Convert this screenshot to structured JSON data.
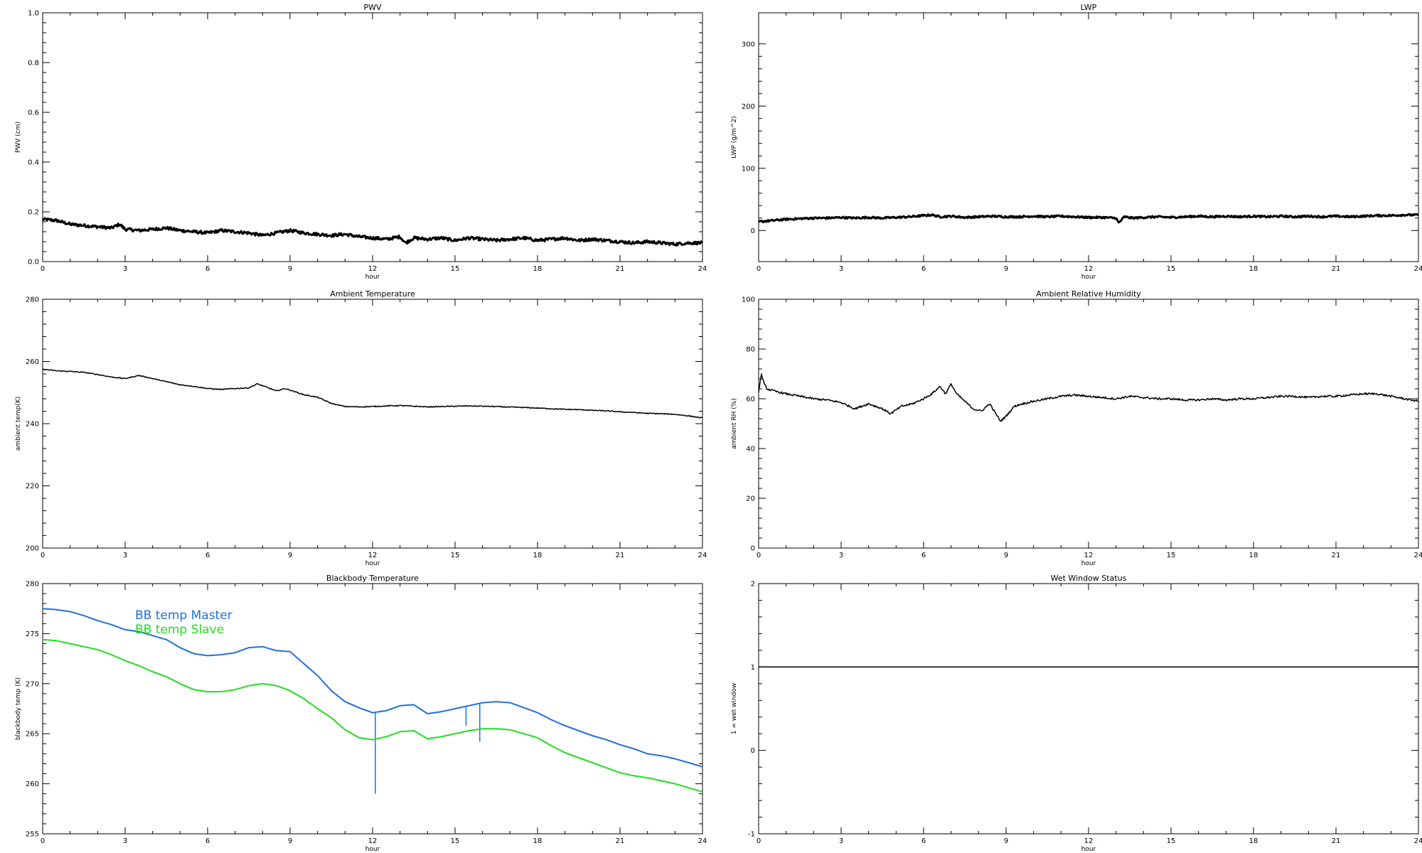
{
  "chart_data": [
    {
      "type": "line",
      "title": "PWV",
      "xlabel": "hour",
      "ylabel": "PWV (cm)",
      "xlim": [
        0,
        24
      ],
      "ylim": [
        0.0,
        1.0
      ],
      "xticks": [
        "0",
        "3",
        "6",
        "9",
        "12",
        "15",
        "18",
        "21",
        "24"
      ],
      "yticks": [
        "0.0",
        "0.2",
        "0.4",
        "0.6",
        "0.8",
        "1.0"
      ],
      "ytick_values": [
        0.0,
        0.2,
        0.4,
        0.6,
        0.8,
        1.0
      ],
      "series": [
        {
          "color": "#000000",
          "noise": 0.006,
          "width": 3,
          "x": [
            0,
            0.5,
            1,
            1.5,
            2,
            2.5,
            2.8,
            3,
            3.5,
            4,
            4.5,
            5,
            5.5,
            6,
            6.5,
            7,
            7.5,
            8,
            8.5,
            9,
            9.5,
            10,
            10.5,
            11,
            11.5,
            12,
            12.5,
            13,
            13.2,
            13.5,
            14,
            14.5,
            15,
            15.5,
            16,
            16.5,
            17,
            17.5,
            18,
            18.5,
            19,
            19.5,
            20,
            20.5,
            21,
            21.5,
            22,
            22.5,
            23,
            23.5,
            24
          ],
          "y": [
            0.17,
            0.165,
            0.15,
            0.145,
            0.14,
            0.135,
            0.15,
            0.13,
            0.125,
            0.13,
            0.135,
            0.125,
            0.12,
            0.115,
            0.125,
            0.12,
            0.115,
            0.105,
            0.115,
            0.125,
            0.115,
            0.11,
            0.105,
            0.11,
            0.1,
            0.095,
            0.09,
            0.1,
            0.075,
            0.095,
            0.09,
            0.095,
            0.085,
            0.095,
            0.09,
            0.085,
            0.09,
            0.095,
            0.085,
            0.09,
            0.095,
            0.085,
            0.09,
            0.085,
            0.08,
            0.075,
            0.08,
            0.075,
            0.07,
            0.075,
            0.075
          ]
        }
      ]
    },
    {
      "type": "line",
      "title": "LWP",
      "xlabel": "hour",
      "ylabel": "LWP (g/m^2)",
      "xlim": [
        0,
        24
      ],
      "ylim": [
        -50,
        350
      ],
      "xticks": [
        "0",
        "3",
        "6",
        "9",
        "12",
        "15",
        "18",
        "21",
        "24"
      ],
      "yticks": [
        "0",
        "100",
        "200",
        "300"
      ],
      "ytick_values": [
        0,
        100,
        200,
        300
      ],
      "series": [
        {
          "color": "#000000",
          "noise": 1.5,
          "width": 3,
          "x": [
            0,
            0.5,
            1,
            1.5,
            2,
            2.5,
            3,
            3.5,
            4,
            4.5,
            5,
            5.5,
            6,
            6.3,
            6.6,
            7,
            7.5,
            8,
            8.5,
            9,
            9.5,
            10,
            10.5,
            11,
            11.5,
            12,
            12.5,
            13,
            13.1,
            13.3,
            13.6,
            14,
            14.5,
            15,
            15.5,
            16,
            16.5,
            17,
            17.5,
            18,
            18.5,
            19,
            19.5,
            20,
            20.5,
            21,
            21.5,
            22,
            22.5,
            23,
            23.5,
            24
          ],
          "y": [
            14,
            16,
            18,
            19,
            20,
            20,
            21,
            20,
            21,
            20,
            21,
            22,
            24,
            25,
            22,
            23,
            21,
            22,
            23,
            22,
            22,
            23,
            22,
            23,
            22,
            21,
            21,
            20,
            12,
            22,
            20,
            21,
            22,
            21,
            22,
            23,
            22,
            23,
            22,
            23,
            22,
            23,
            22,
            23,
            22,
            23,
            22,
            23,
            24,
            24,
            25,
            25
          ]
        }
      ]
    },
    {
      "type": "line",
      "title": "Ambient Temperature",
      "xlabel": "hour",
      "ylabel": "ambient temp(K)",
      "xlim": [
        0,
        24
      ],
      "ylim": [
        200,
        280
      ],
      "xticks": [
        "0",
        "3",
        "6",
        "9",
        "12",
        "15",
        "18",
        "21",
        "24"
      ],
      "yticks": [
        "200",
        "220",
        "240",
        "260",
        "280"
      ],
      "ytick_values": [
        200,
        220,
        240,
        260,
        280
      ],
      "series": [
        {
          "color": "#000000",
          "noise": 0.15,
          "width": 1.5,
          "x": [
            0,
            0.5,
            1,
            1.5,
            2,
            2.5,
            3,
            3.5,
            4,
            4.5,
            5,
            5.5,
            6,
            6.5,
            7,
            7.5,
            7.8,
            8,
            8.5,
            8.8,
            9,
            9.5,
            10,
            10.5,
            11,
            11.5,
            12,
            12.5,
            13,
            13.5,
            14,
            14.5,
            15,
            15.5,
            16,
            16.5,
            17,
            17.5,
            18,
            18.5,
            19,
            19.5,
            20,
            20.5,
            21,
            21.5,
            22,
            22.5,
            23,
            23.5,
            24
          ],
          "y": [
            257.5,
            257,
            256.8,
            256.5,
            255.8,
            255,
            254.5,
            255.5,
            254.5,
            253.5,
            252.5,
            252,
            251.3,
            251,
            251.3,
            251.5,
            252.8,
            252.2,
            250.5,
            251.3,
            250.8,
            249.3,
            248.5,
            246.5,
            245.5,
            245.4,
            245.5,
            245.7,
            245.8,
            245.6,
            245.4,
            245.5,
            245.6,
            245.7,
            245.6,
            245.5,
            245.3,
            245.2,
            245.0,
            244.8,
            244.6,
            244.5,
            244.3,
            244.1,
            243.8,
            243.6,
            243.3,
            243.2,
            243.0,
            242.5,
            241.8
          ]
        }
      ]
    },
    {
      "type": "line",
      "title": "Ambient Relative Humidity",
      "xlabel": "hour",
      "ylabel": "ambient RH (%)",
      "xlim": [
        0,
        24
      ],
      "ylim": [
        0,
        100
      ],
      "xticks": [
        "0",
        "3",
        "6",
        "9",
        "12",
        "15",
        "18",
        "21",
        "24"
      ],
      "yticks": [
        "0",
        "20",
        "40",
        "60",
        "80",
        "100"
      ],
      "ytick_values": [
        0,
        20,
        40,
        60,
        80,
        100
      ],
      "series": [
        {
          "color": "#000000",
          "noise": 0.4,
          "width": 1.5,
          "x": [
            0,
            0.1,
            0.2,
            0.3,
            0.6,
            1,
            1.5,
            2,
            2.5,
            3,
            3.5,
            4,
            4.5,
            4.8,
            5.2,
            5.6,
            6,
            6.3,
            6.6,
            6.8,
            7,
            7.2,
            7.5,
            7.8,
            8.1,
            8.4,
            8.8,
            9,
            9.3,
            9.6,
            10,
            10.5,
            11,
            11.5,
            12,
            12.5,
            13,
            13.5,
            14,
            14.5,
            15,
            15.5,
            16,
            16.5,
            17,
            17.5,
            18,
            18.5,
            19,
            19.5,
            20,
            20.5,
            21,
            21.5,
            22,
            22.5,
            23,
            23.5,
            24
          ],
          "y": [
            63,
            70,
            66,
            64,
            63,
            62,
            61,
            60,
            59.5,
            58.5,
            56,
            58,
            56,
            54,
            57,
            58,
            60,
            62,
            65,
            62,
            66,
            62,
            59,
            56,
            55,
            58,
            51,
            53,
            57,
            58,
            59,
            60,
            61,
            61.5,
            61,
            60.5,
            60,
            61,
            60.5,
            60,
            60,
            59.5,
            59.5,
            60,
            59.5,
            60,
            60,
            60.5,
            61,
            61,
            60.5,
            61,
            61,
            61.5,
            62,
            62,
            61,
            60,
            59
          ]
        }
      ]
    },
    {
      "type": "line",
      "title": "Blackbody Temperature",
      "xlabel": "hour",
      "ylabel": "blackbody temp (K)",
      "xlim": [
        0,
        24
      ],
      "ylim": [
        255,
        280
      ],
      "xticks": [
        "0",
        "3",
        "6",
        "9",
        "12",
        "15",
        "18",
        "21",
        "24"
      ],
      "yticks": [
        "255",
        "260",
        "265",
        "270",
        "275",
        "280"
      ],
      "ytick_values": [
        255,
        260,
        265,
        270,
        275,
        280
      ],
      "legend": "top-left",
      "series": [
        {
          "name": "BB temp Master",
          "color": "#1f6fe0",
          "noise": 0,
          "width": 2,
          "x": [
            0,
            0.5,
            1,
            1.5,
            2,
            2.5,
            3,
            3.5,
            4,
            4.5,
            5,
            5.5,
            6,
            6.5,
            7,
            7.5,
            8,
            8.5,
            9,
            9.5,
            10,
            10.5,
            11,
            11.5,
            12,
            12.5,
            13,
            13.5,
            14,
            14.5,
            15,
            15.5,
            16,
            16.5,
            17,
            17.5,
            18,
            18.5,
            19,
            19.5,
            20,
            20.5,
            21,
            21.5,
            22,
            22.5,
            23,
            23.5,
            24
          ],
          "y": [
            277.5,
            277.4,
            277.2,
            276.8,
            276.3,
            275.9,
            275.4,
            275.2,
            274.8,
            274.4,
            273.6,
            273.0,
            272.8,
            272.9,
            273.1,
            273.6,
            273.7,
            273.3,
            273.2,
            272.0,
            270.8,
            269.3,
            268.2,
            267.6,
            267.1,
            267.3,
            267.8,
            267.9,
            267.0,
            267.2,
            267.5,
            267.8,
            268.1,
            268.2,
            268.1,
            267.6,
            267.1,
            266.4,
            265.8,
            265.3,
            264.8,
            264.4,
            263.9,
            263.5,
            263.0,
            262.8,
            262.5,
            262.1,
            261.7
          ],
          "spikes": [
            [
              12.1,
              259.0
            ],
            [
              15.4,
              265.8
            ],
            [
              15.9,
              264.2
            ]
          ]
        },
        {
          "name": "BB temp Slave",
          "color": "#22dd22",
          "noise": 0,
          "width": 2,
          "x": [
            0,
            0.5,
            1,
            1.5,
            2,
            2.5,
            3,
            3.5,
            4,
            4.5,
            5,
            5.5,
            6,
            6.5,
            7,
            7.5,
            8,
            8.5,
            9,
            9.5,
            10,
            10.5,
            11,
            11.5,
            12,
            12.5,
            13,
            13.5,
            14,
            14.5,
            15,
            15.5,
            16,
            16.5,
            17,
            17.5,
            18,
            18.5,
            19,
            19.5,
            20,
            20.5,
            21,
            21.5,
            22,
            22.5,
            23,
            23.5,
            24
          ],
          "y": [
            274.4,
            274.3,
            274.0,
            273.7,
            273.4,
            272.9,
            272.3,
            271.8,
            271.2,
            270.7,
            270.0,
            269.4,
            269.2,
            269.2,
            269.4,
            269.8,
            270.0,
            269.8,
            269.3,
            268.5,
            267.5,
            266.6,
            265.4,
            264.6,
            264.4,
            264.7,
            265.2,
            265.3,
            264.5,
            264.7,
            265.0,
            265.3,
            265.5,
            265.5,
            265.4,
            265.0,
            264.6,
            263.8,
            263.1,
            262.6,
            262.1,
            261.6,
            261.1,
            260.8,
            260.6,
            260.3,
            260.0,
            259.6,
            259.2
          ],
          "spikes": []
        }
      ]
    },
    {
      "type": "line",
      "title": "Wet Window Status",
      "xlabel": "hour",
      "ylabel": "1 = wet window",
      "xlim": [
        0,
        24
      ],
      "ylim": [
        -1,
        2
      ],
      "xticks": [
        "0",
        "3",
        "6",
        "9",
        "12",
        "15",
        "18",
        "21",
        "24"
      ],
      "yticks": [
        "-1",
        "0",
        "1",
        "2"
      ],
      "ytick_values": [
        -1,
        0,
        1,
        2
      ],
      "series": [
        {
          "color": "#000000",
          "noise": 0,
          "width": 1.5,
          "x": [
            0,
            24
          ],
          "y": [
            1,
            1
          ]
        }
      ]
    }
  ]
}
